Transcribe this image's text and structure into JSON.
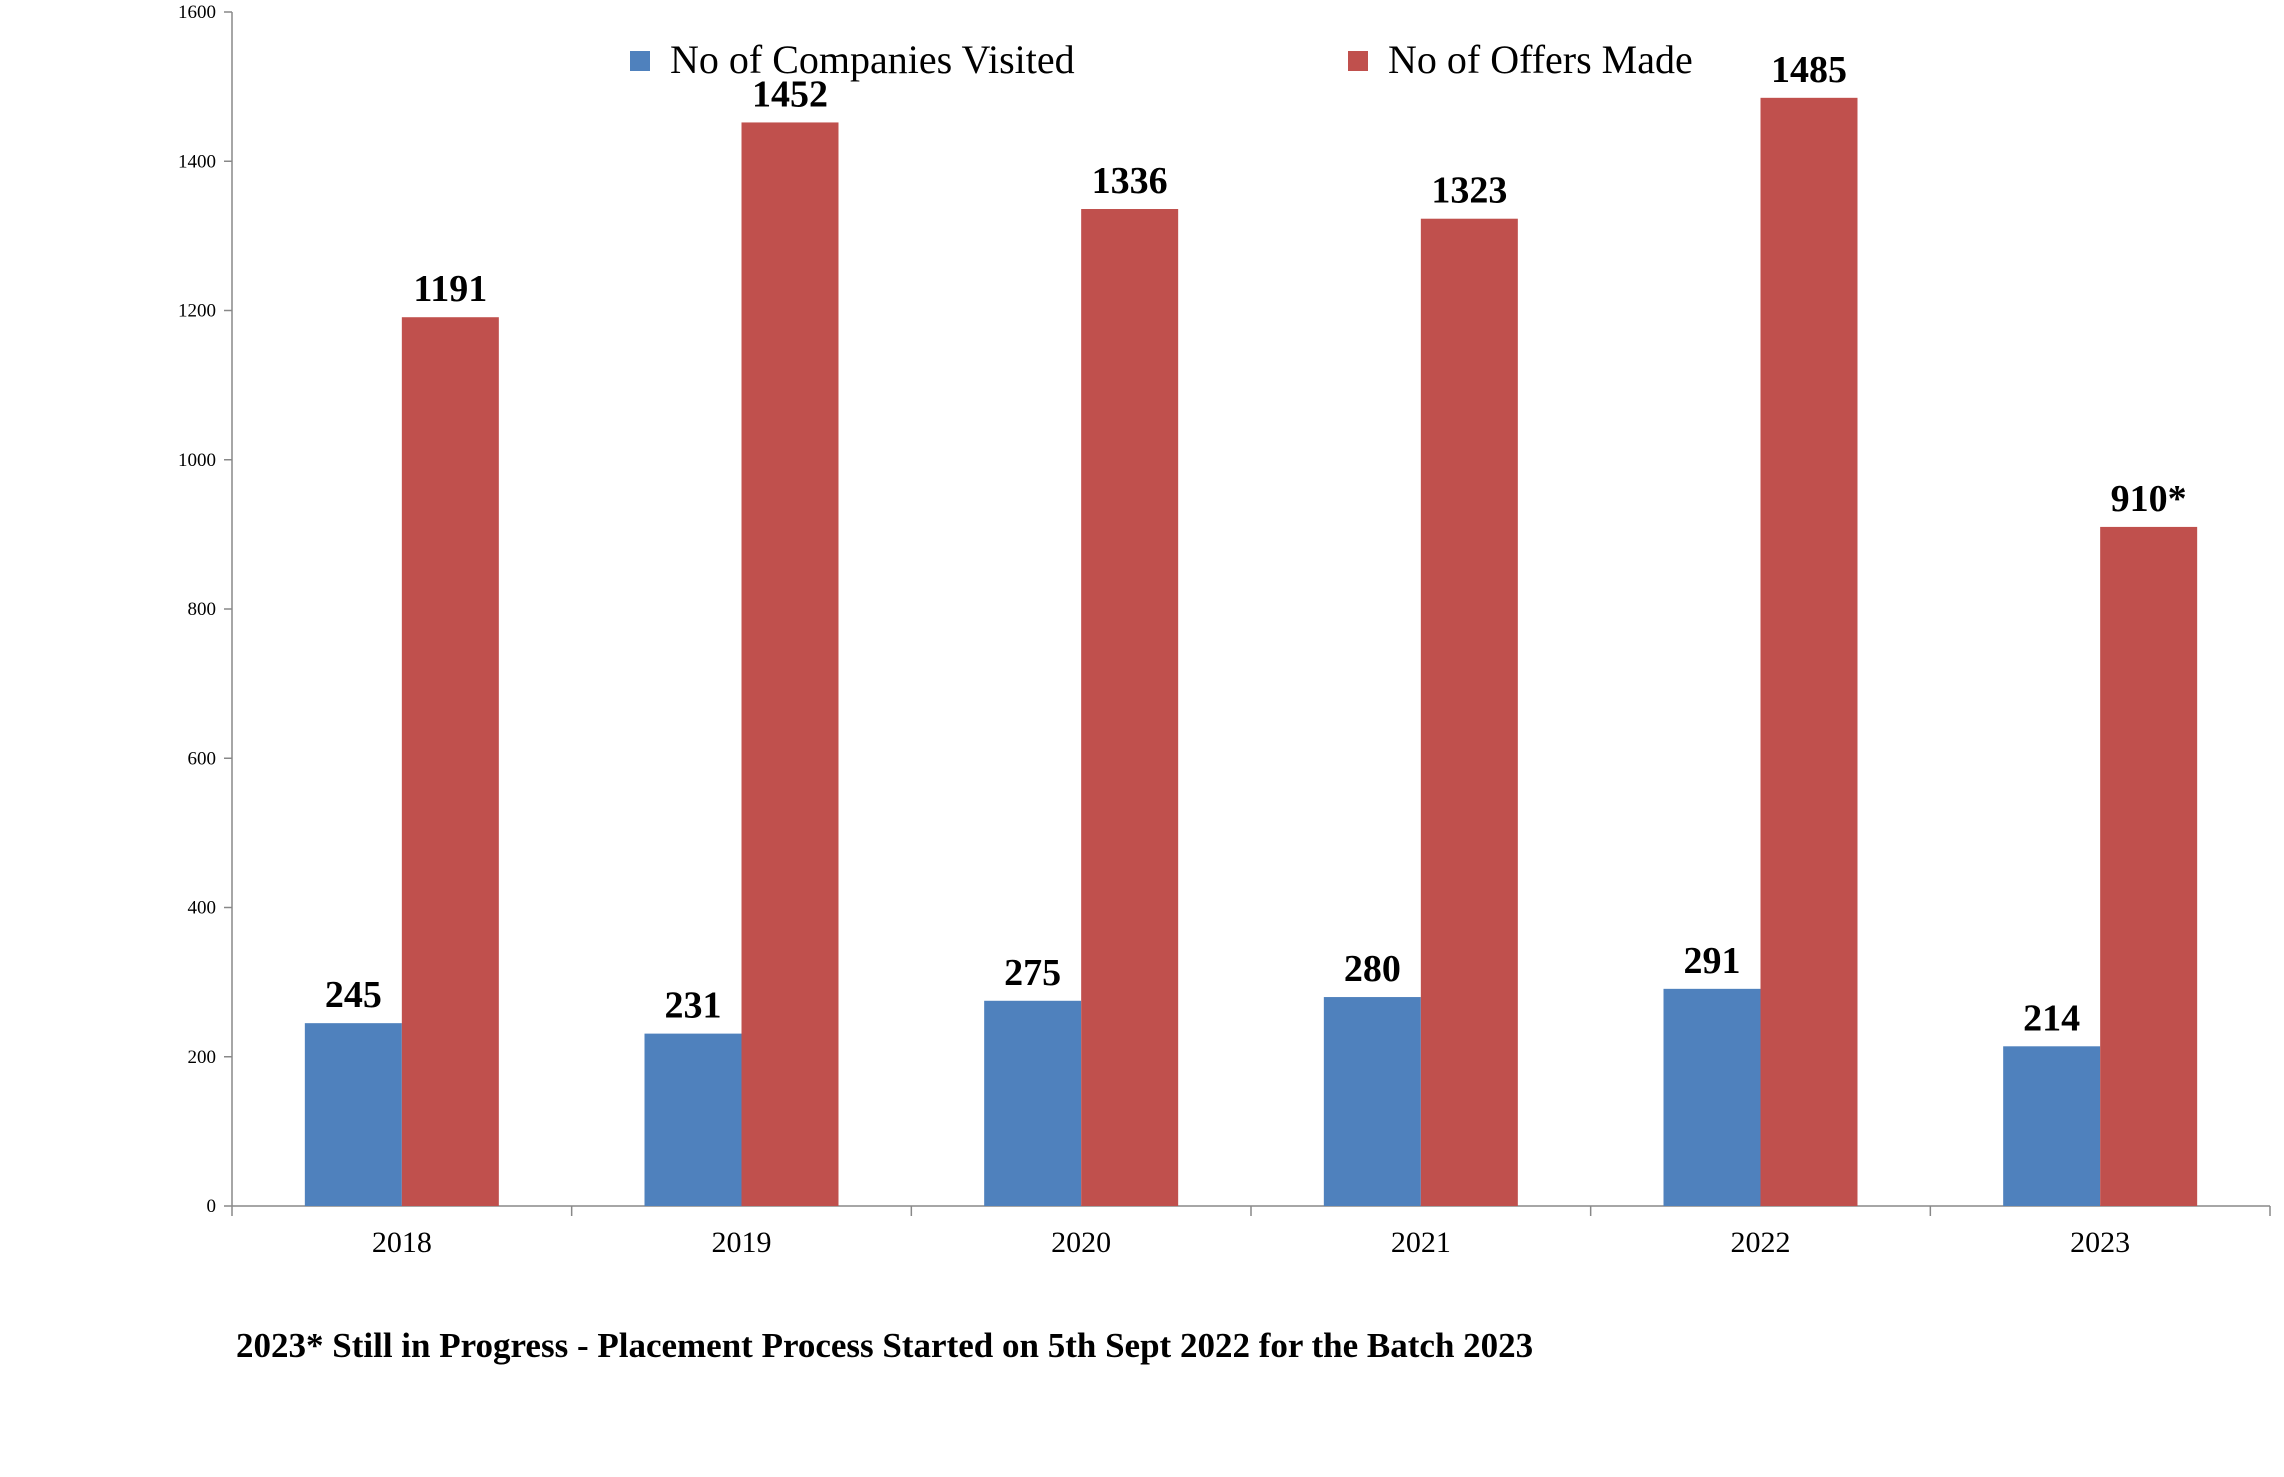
{
  "colors": {
    "companies": "#4F81BD",
    "offers": "#C0504D",
    "axis": "#888888"
  },
  "legend": [
    {
      "label": "No of Companies Visited",
      "color": "#4F81BD"
    },
    {
      "label": "No of Offers Made",
      "color": "#C0504D"
    }
  ],
  "footnote": "2023* Still in Progress - Placement Process Started on 5th Sept 2022 for the Batch 2023",
  "chart_data": {
    "type": "bar",
    "title": "",
    "xlabel": "",
    "ylabel": "",
    "ylim": [
      0,
      1600
    ],
    "yticks": [
      0,
      200,
      400,
      600,
      800,
      1000,
      1200,
      1400,
      1600
    ],
    "grid": false,
    "legend_position": "top",
    "categories": [
      "2018",
      "2019",
      "2020",
      "2021",
      "2022",
      "2023"
    ],
    "series": [
      {
        "name": "No of Companies Visited",
        "values": [
          245,
          231,
          275,
          280,
          291,
          214
        ],
        "labels": [
          "245",
          "231",
          "275",
          "280",
          "291",
          "214"
        ]
      },
      {
        "name": "No of Offers Made",
        "values": [
          1191,
          1452,
          1336,
          1323,
          1485,
          910
        ],
        "labels": [
          "1191",
          "1452",
          "1336",
          "1323",
          "1485",
          "910*"
        ]
      }
    ]
  }
}
